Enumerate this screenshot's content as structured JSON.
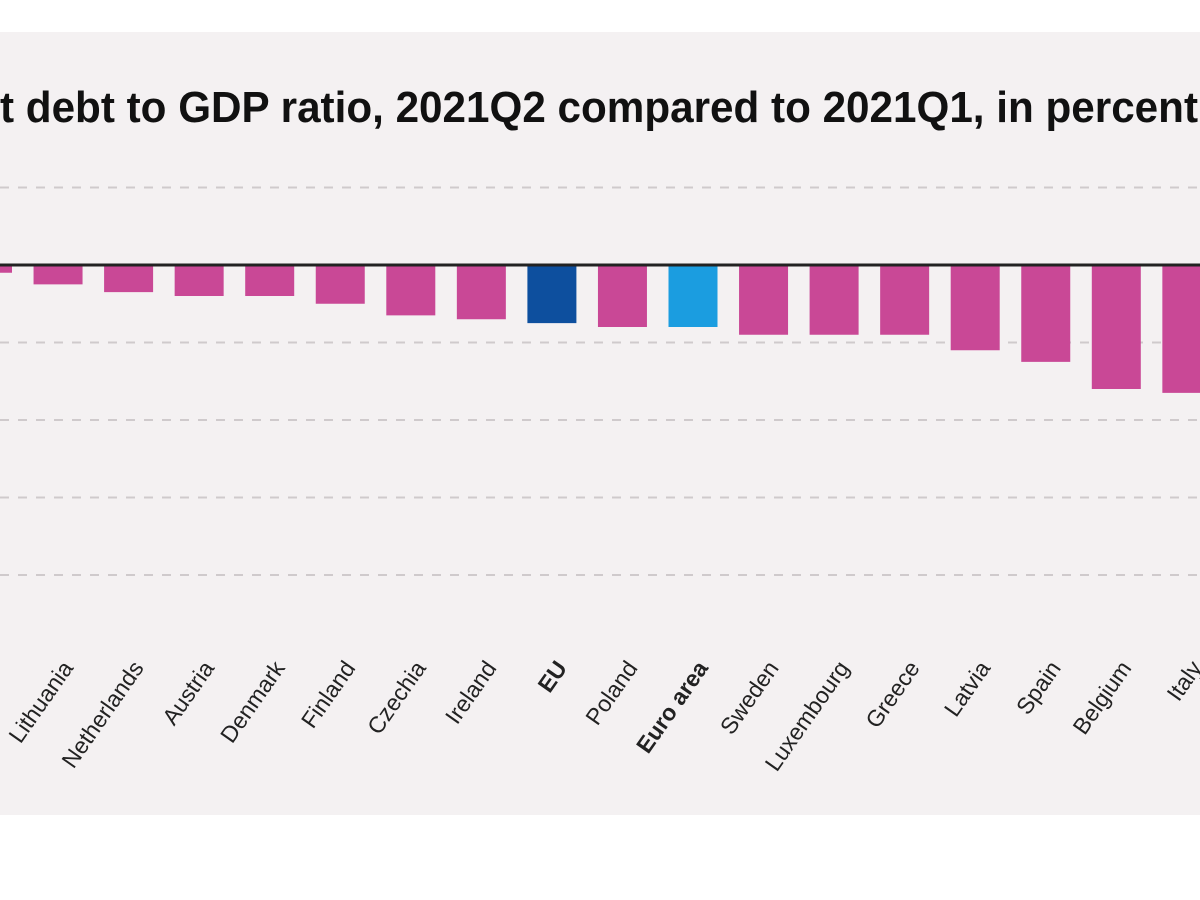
{
  "chart_data": {
    "type": "bar",
    "title": "t debt to GDP ratio, 2021Q2 compared to 2021Q1, in percent",
    "categories": [
      "",
      "Lithuania",
      "Netherlands",
      "Austria",
      "Denmark",
      "Finland",
      "Czechia",
      "Ireland",
      "EU",
      "Poland",
      "Euro area",
      "Sweden",
      "Luxembourg",
      "Greece",
      "Latvia",
      "Spain",
      "Belgium",
      "Italy"
    ],
    "values": [
      -0.2,
      -0.5,
      -0.7,
      -0.8,
      -0.8,
      -1.0,
      -1.3,
      -1.4,
      -1.5,
      -1.6,
      -1.6,
      -1.8,
      -1.8,
      -1.8,
      -2.2,
      -2.5,
      -3.2,
      -3.3
    ],
    "highlight": {
      "EU": "#0d4f9e",
      "Euro area": "#1b9de0"
    },
    "bold_categories": [
      "EU",
      "Euro area"
    ],
    "bar_color": "#c94896",
    "ylim": [
      -10,
      3
    ],
    "gridlines": [
      2,
      -2,
      -4,
      -6,
      -8
    ],
    "grid": true,
    "background": "#f4f1f2"
  }
}
